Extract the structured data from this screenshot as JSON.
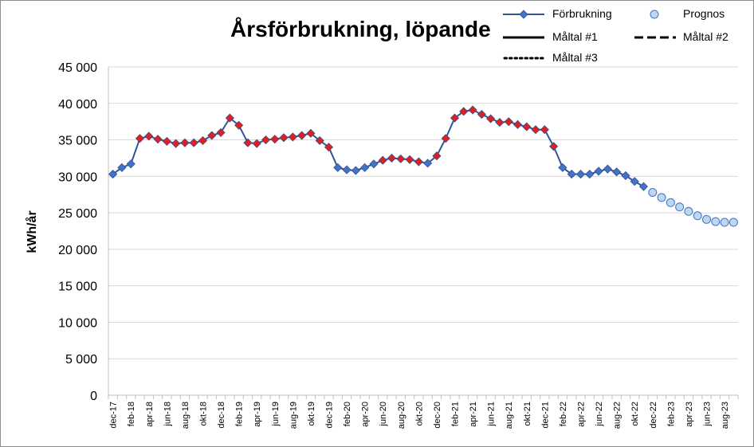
{
  "chart_data": {
    "type": "line",
    "title": "Årsförbrukning, löpande",
    "ylabel": "kWh/år",
    "xlabel": "",
    "ylim": [
      0,
      45000
    ],
    "yticks": [
      0,
      5000,
      10000,
      15000,
      20000,
      25000,
      30000,
      35000,
      40000,
      45000
    ],
    "ytick_labels": [
      "0",
      "5 000",
      "10 000",
      "15 000",
      "20 000",
      "25 000",
      "30 000",
      "35 000",
      "40 000",
      "45 000"
    ],
    "grid": "horizontal",
    "legend_placement": "top-right",
    "legend": [
      {
        "name": "Förbrukning",
        "style": "line-diamond"
      },
      {
        "name": "Prognos",
        "style": "circle"
      },
      {
        "name": "Måltal #1",
        "style": "solid"
      },
      {
        "name": "Måltal #2",
        "style": "dashed"
      },
      {
        "name": "Måltal #3",
        "style": "dotted"
      }
    ],
    "months": [
      "dec-17",
      "jan-18",
      "feb-18",
      "mar-18",
      "apr-18",
      "maj-18",
      "jun-18",
      "jul-18",
      "aug-18",
      "sep-18",
      "okt-18",
      "nov-18",
      "dec-18",
      "jan-19",
      "feb-19",
      "mar-19",
      "apr-19",
      "maj-19",
      "jun-19",
      "jul-19",
      "aug-19",
      "sep-19",
      "okt-19",
      "nov-19",
      "dec-19",
      "jan-20",
      "feb-20",
      "mar-20",
      "apr-20",
      "maj-20",
      "jun-20",
      "jul-20",
      "aug-20",
      "sep-20",
      "okt-20",
      "nov-20",
      "dec-20",
      "jan-21",
      "feb-21",
      "mar-21",
      "apr-21",
      "maj-21",
      "jun-21",
      "jul-21",
      "aug-21",
      "sep-21",
      "okt-21",
      "nov-21",
      "dec-21",
      "jan-22",
      "feb-22",
      "mar-22",
      "apr-22",
      "maj-22",
      "jun-22",
      "jul-22",
      "aug-22",
      "sep-22",
      "okt-22",
      "nov-22",
      "dec-22",
      "jan-23",
      "feb-23",
      "mar-23",
      "apr-23",
      "maj-23",
      "jun-23",
      "jul-23",
      "aug-23",
      "sep-23"
    ],
    "tick_labels": [
      "dec-17",
      "feb-18",
      "apr-18",
      "jun-18",
      "aug-18",
      "okt-18",
      "dec-18",
      "feb-19",
      "apr-19",
      "jun-19",
      "aug-19",
      "okt-19",
      "dec-19",
      "feb-20",
      "apr-20",
      "jun-20",
      "aug-20",
      "okt-20",
      "dec-20",
      "feb-21",
      "apr-21",
      "jun-21",
      "aug-21",
      "okt-21",
      "dec-21",
      "feb-22",
      "apr-22",
      "jun-22",
      "aug-22",
      "okt-22",
      "dec-22",
      "feb-23",
      "apr-23",
      "jun-23",
      "aug-23"
    ],
    "series": [
      {
        "name": "Förbrukning",
        "color": "#2f5597",
        "marker_color": "#4472c4",
        "highlight_color": "#e02020",
        "values": [
          30300,
          31200,
          31700,
          35200,
          35500,
          35100,
          34800,
          34500,
          34600,
          34600,
          34900,
          35600,
          36000,
          38000,
          37000,
          34600,
          34500,
          35000,
          35100,
          35300,
          35400,
          35600,
          35900,
          34900,
          34000,
          31200,
          30900,
          30800,
          31200,
          31700,
          32200,
          32500,
          32400,
          32300,
          32000,
          31800,
          32800,
          35200,
          38000,
          38900,
          39100,
          38500,
          37900,
          37400,
          37500,
          37100,
          36800,
          36400,
          36400,
          34100,
          31200,
          30300,
          30300,
          30300,
          30700,
          31000,
          30600,
          30100,
          29300,
          28600
        ],
        "highlighted": [
          false,
          false,
          false,
          true,
          true,
          true,
          true,
          true,
          true,
          true,
          true,
          true,
          true,
          true,
          true,
          true,
          true,
          true,
          true,
          true,
          true,
          true,
          true,
          true,
          true,
          false,
          false,
          false,
          false,
          false,
          true,
          true,
          true,
          true,
          true,
          false,
          true,
          true,
          true,
          true,
          true,
          true,
          true,
          true,
          true,
          true,
          true,
          true,
          true,
          true,
          false,
          false,
          false,
          false,
          false,
          false,
          false,
          false,
          false,
          false
        ]
      },
      {
        "name": "Prognos",
        "color": "#bdd7ee",
        "edge_color": "#4472c4",
        "start_index": 60,
        "values": [
          27800,
          27100,
          26400,
          25800,
          25200,
          24600,
          24100,
          23800,
          23700,
          23700
        ]
      }
    ]
  }
}
